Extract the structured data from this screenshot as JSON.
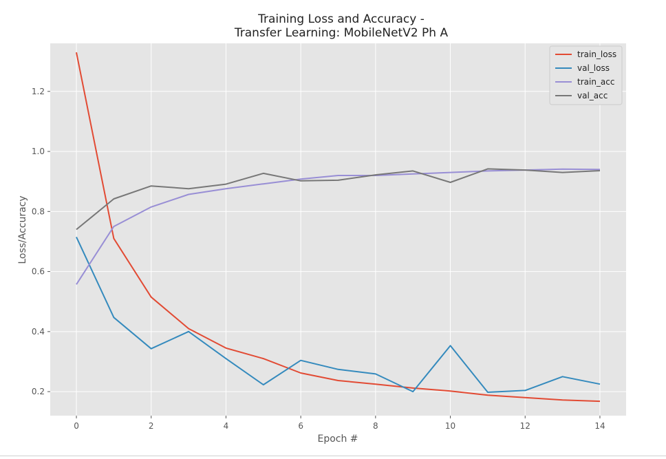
{
  "chart_data": {
    "type": "line",
    "title_line1": "Training Loss and Accuracy -",
    "title_line2": "Transfer Learning: MobileNetV2 Ph A",
    "xlabel": "Epoch #",
    "ylabel": "Loss/Accuracy",
    "xlim": [
      -0.7,
      14.7
    ],
    "ylim": [
      0.12,
      1.36
    ],
    "xticks": [
      0,
      2,
      4,
      6,
      8,
      10,
      12,
      14
    ],
    "yticks": [
      0.2,
      0.4,
      0.6,
      0.8,
      1.0,
      1.2
    ],
    "ytick_labels": [
      "0.2",
      "0.4",
      "0.6",
      "0.8",
      "1.0",
      "1.2"
    ],
    "grid": true,
    "legend_position": "top-right",
    "x": [
      0,
      1,
      2,
      3,
      4,
      5,
      6,
      7,
      8,
      9,
      10,
      11,
      12,
      13,
      14
    ],
    "series": [
      {
        "name": "train_loss",
        "color": "#e24a33",
        "values": [
          1.33,
          0.71,
          0.515,
          0.41,
          0.345,
          0.31,
          0.262,
          0.237,
          0.225,
          0.212,
          0.202,
          0.188,
          0.18,
          0.172,
          0.168
        ]
      },
      {
        "name": "val_loss",
        "color": "#348abd",
        "values": [
          0.715,
          0.447,
          0.343,
          0.4,
          0.31,
          0.223,
          0.304,
          0.274,
          0.259,
          0.2,
          0.353,
          0.198,
          0.204,
          0.25,
          0.225
        ]
      },
      {
        "name": "train_acc",
        "color": "#988ed5",
        "values": [
          0.557,
          0.75,
          0.815,
          0.857,
          0.876,
          0.892,
          0.908,
          0.92,
          0.92,
          0.925,
          0.93,
          0.935,
          0.938,
          0.941,
          0.94
        ]
      },
      {
        "name": "val_acc",
        "color": "#777777",
        "values": [
          0.74,
          0.842,
          0.885,
          0.876,
          0.891,
          0.927,
          0.902,
          0.904,
          0.922,
          0.935,
          0.897,
          0.942,
          0.938,
          0.93,
          0.936
        ]
      }
    ]
  }
}
